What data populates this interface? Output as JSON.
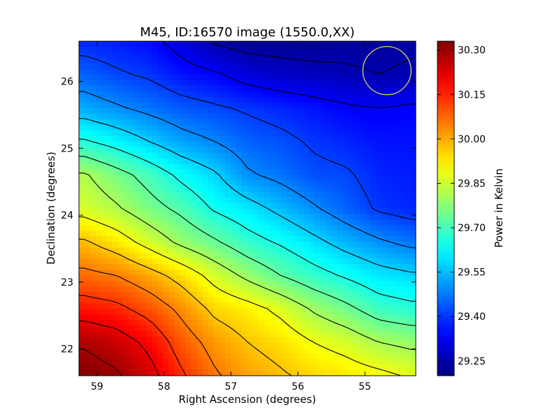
{
  "chart_data": {
    "type": "heatmap",
    "title": "M45, ID:16570 image (1550.0,XX)",
    "xlabel": "Right Ascension (degrees)",
    "ylabel": "Declination (degrees)",
    "colorbar_label": "Power in Kelvin",
    "xlim": [
      59.27,
      54.24
    ],
    "ylim": [
      21.6,
      26.6
    ],
    "x_ticks": [
      59,
      58,
      57,
      56,
      55
    ],
    "x_tick_labels": [
      "59",
      "58",
      "57",
      "56",
      "55"
    ],
    "y_ticks": [
      22,
      23,
      24,
      25,
      26
    ],
    "y_tick_labels": [
      "22",
      "23",
      "24",
      "25",
      "26"
    ],
    "colorbar_range": [
      29.2,
      30.33
    ],
    "colorbar_ticks": [
      30.3,
      30.15,
      30.0,
      29.85,
      29.7,
      29.55,
      29.4,
      29.25
    ],
    "colorbar_tick_labels": [
      "30.30",
      "30.15",
      "30.00",
      "29.85",
      "29.70",
      "29.55",
      "29.40",
      "29.25"
    ],
    "colormap": "jet",
    "contours": true,
    "contour_levels": [
      29.25,
      29.33,
      29.41,
      29.49,
      29.57,
      29.65,
      29.73,
      29.81,
      29.89,
      29.97,
      30.05,
      30.13,
      30.21,
      30.29
    ],
    "field": {
      "ra": [
        59.2,
        58.7,
        58.2,
        57.7,
        57.2,
        56.7,
        56.2,
        55.7,
        55.2,
        54.7,
        54.3
      ],
      "dec": [
        26.6,
        26.0,
        25.5,
        25.0,
        24.5,
        24.0,
        23.5,
        23.0,
        22.5,
        22.0,
        21.6
      ],
      "values": [
        [
          29.38,
          29.37,
          29.35,
          29.3,
          29.24,
          29.22,
          29.22,
          29.22,
          29.23,
          29.23,
          29.24
        ],
        [
          29.45,
          29.42,
          29.4,
          29.36,
          29.34,
          29.3,
          29.28,
          29.27,
          29.26,
          29.25,
          29.26
        ],
        [
          29.53,
          29.5,
          29.47,
          29.44,
          29.42,
          29.4,
          29.38,
          29.36,
          29.34,
          29.33,
          29.34
        ],
        [
          29.66,
          29.62,
          29.57,
          29.52,
          29.49,
          29.45,
          29.43,
          29.4,
          29.38,
          29.36,
          29.36
        ],
        [
          29.82,
          29.76,
          29.7,
          29.63,
          29.58,
          29.5,
          29.47,
          29.43,
          29.42,
          29.38,
          29.37
        ],
        [
          29.86,
          29.82,
          29.76,
          29.71,
          29.64,
          29.6,
          29.55,
          29.5,
          29.45,
          29.4,
          29.38
        ],
        [
          29.98,
          29.93,
          29.86,
          29.79,
          29.74,
          29.68,
          29.64,
          29.59,
          29.54,
          29.5,
          29.47
        ],
        [
          30.07,
          30.05,
          30.0,
          29.94,
          29.86,
          29.79,
          29.73,
          29.68,
          29.64,
          29.6,
          29.58
        ],
        [
          30.17,
          30.15,
          30.1,
          30.03,
          29.95,
          29.92,
          29.87,
          29.8,
          29.75,
          29.69,
          29.67
        ],
        [
          30.28,
          30.25,
          30.19,
          30.09,
          30.02,
          29.97,
          29.94,
          29.89,
          29.86,
          29.81,
          29.79
        ],
        [
          30.33,
          30.3,
          30.24,
          30.14,
          30.06,
          30.01,
          29.98,
          29.95,
          29.93,
          29.91,
          29.88
        ]
      ]
    },
    "beam_circle": {
      "ra": 54.67,
      "dec": 26.16,
      "radius_deg": 0.36,
      "color": "#d8d060"
    }
  }
}
